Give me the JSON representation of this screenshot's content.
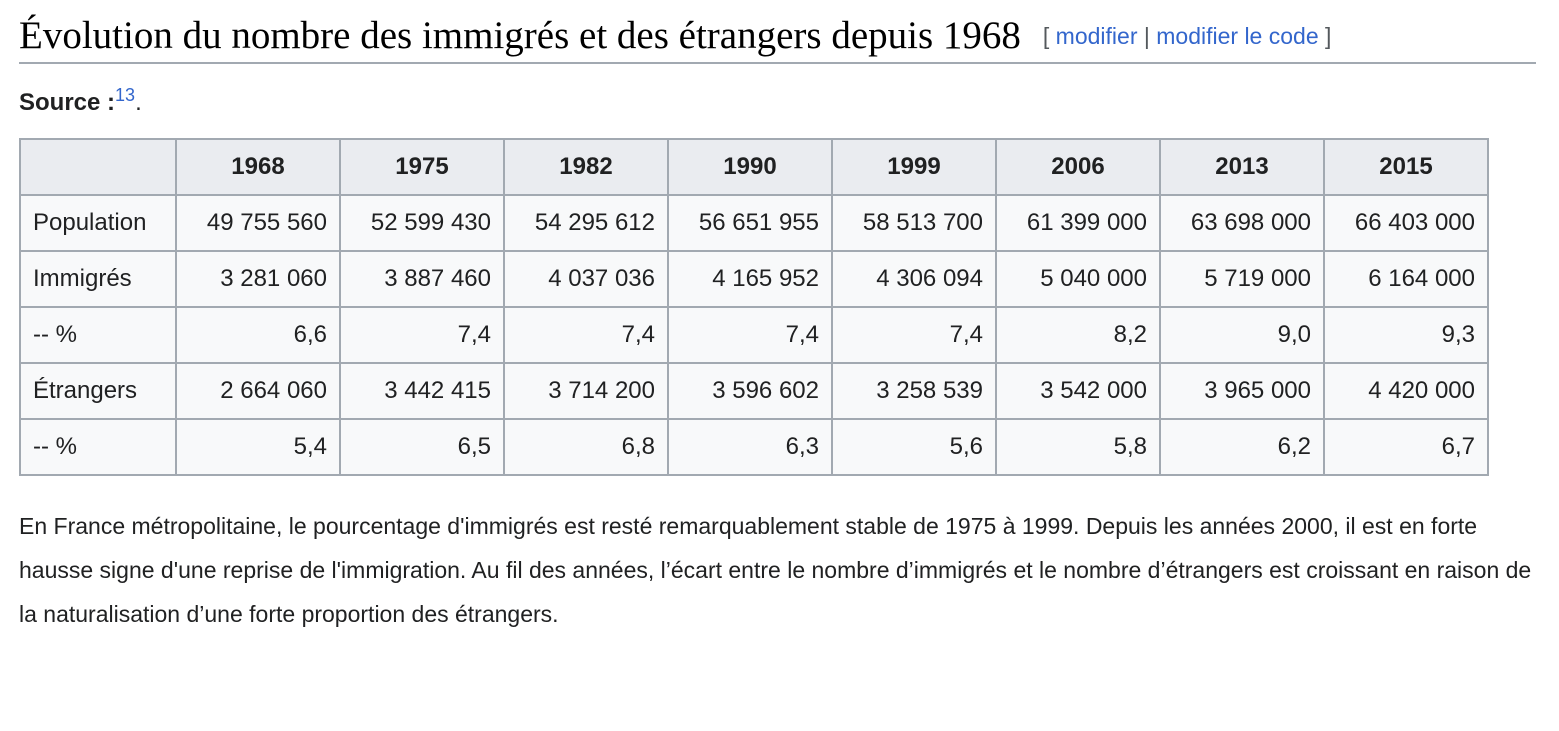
{
  "section": {
    "title": "Évolution du nombre des immigrés et des étrangers depuis 1968",
    "edit_open": "[",
    "edit_link": "modifier",
    "edit_sep": "|",
    "edit_code_link": "modifier le code",
    "edit_close": "]"
  },
  "source": {
    "label": "Source :",
    "ref": "13",
    "punct": "."
  },
  "table": {
    "columns": [
      "1968",
      "1975",
      "1982",
      "1990",
      "1999",
      "2006",
      "2013",
      "2015"
    ],
    "rows": [
      {
        "label": "Population",
        "values": [
          "49 755 560",
          "52 599 430",
          "54 295 612",
          "56 651 955",
          "58 513 700",
          "61 399 000",
          "63 698 000",
          "66 403 000"
        ]
      },
      {
        "label": "Immigrés",
        "values": [
          "3 281 060",
          "3 887 460",
          "4 037 036",
          "4 165 952",
          "4 306 094",
          "5 040 000",
          "5 719 000",
          "6 164 000"
        ]
      },
      {
        "label": "-- %",
        "values": [
          "6,6",
          "7,4",
          "7,4",
          "7,4",
          "7,4",
          "8,2",
          "9,0",
          "9,3"
        ]
      },
      {
        "label": "Étrangers",
        "values": [
          "2 664 060",
          "3 442 415",
          "3 714 200",
          "3 596 602",
          "3 258 539",
          "3 542 000",
          "3 965 000",
          "4 420 000"
        ]
      },
      {
        "label": "-- %",
        "values": [
          "5,4",
          "6,5",
          "6,8",
          "6,3",
          "5,6",
          "5,8",
          "6,2",
          "6,7"
        ]
      }
    ]
  },
  "paragraph": "En France métropolitaine, le pourcentage d'immigrés est resté remarquablement stable de 1975 à 1999. Depuis les années 2000, il est en forte hausse signe d'une reprise de l'immigration. Au fil des années, l’écart entre le nombre d’immigrés et le nombre d’étrangers est croissant en raison de la naturalisation d’une forte proportion des étrangers."
}
